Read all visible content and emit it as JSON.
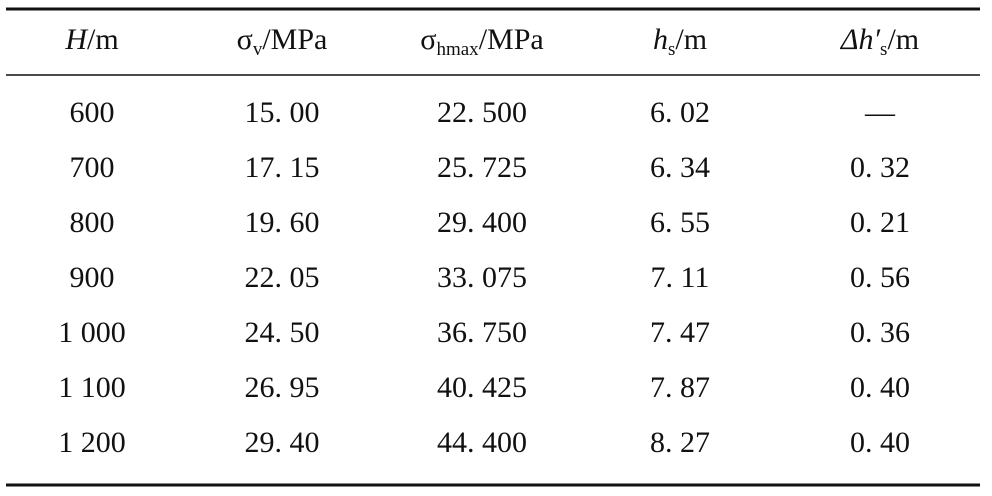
{
  "table": {
    "header": [
      {
        "symbol": "H",
        "subscript": null,
        "unit": "/m"
      },
      {
        "symbol": "σ",
        "subscript": "v",
        "unit": "/MPa"
      },
      {
        "symbol": "σ",
        "subscript": "hmax",
        "unit": "/MPa"
      },
      {
        "symbol": "h",
        "subscript": "s",
        "unit": "/m"
      },
      {
        "symbol": "Δh′",
        "subscript": "s",
        "unit": "/m"
      }
    ],
    "rows": [
      [
        "600",
        "15. 00",
        "22. 500",
        "6. 02",
        "—"
      ],
      [
        "700",
        "17. 15",
        "25. 725",
        "6. 34",
        "0. 32"
      ],
      [
        "800",
        "19. 60",
        "29. 400",
        "6. 55",
        "0. 21"
      ],
      [
        "900",
        "22. 05",
        "33. 075",
        "7. 11",
        "0. 56"
      ],
      [
        "1 000",
        "24. 50",
        "36. 750",
        "7. 47",
        "0. 36"
      ],
      [
        "1 100",
        "26. 95",
        "40. 425",
        "7. 87",
        "0. 40"
      ],
      [
        "1 200",
        "29. 40",
        "44. 400",
        "8. 27",
        "0. 40"
      ]
    ]
  }
}
